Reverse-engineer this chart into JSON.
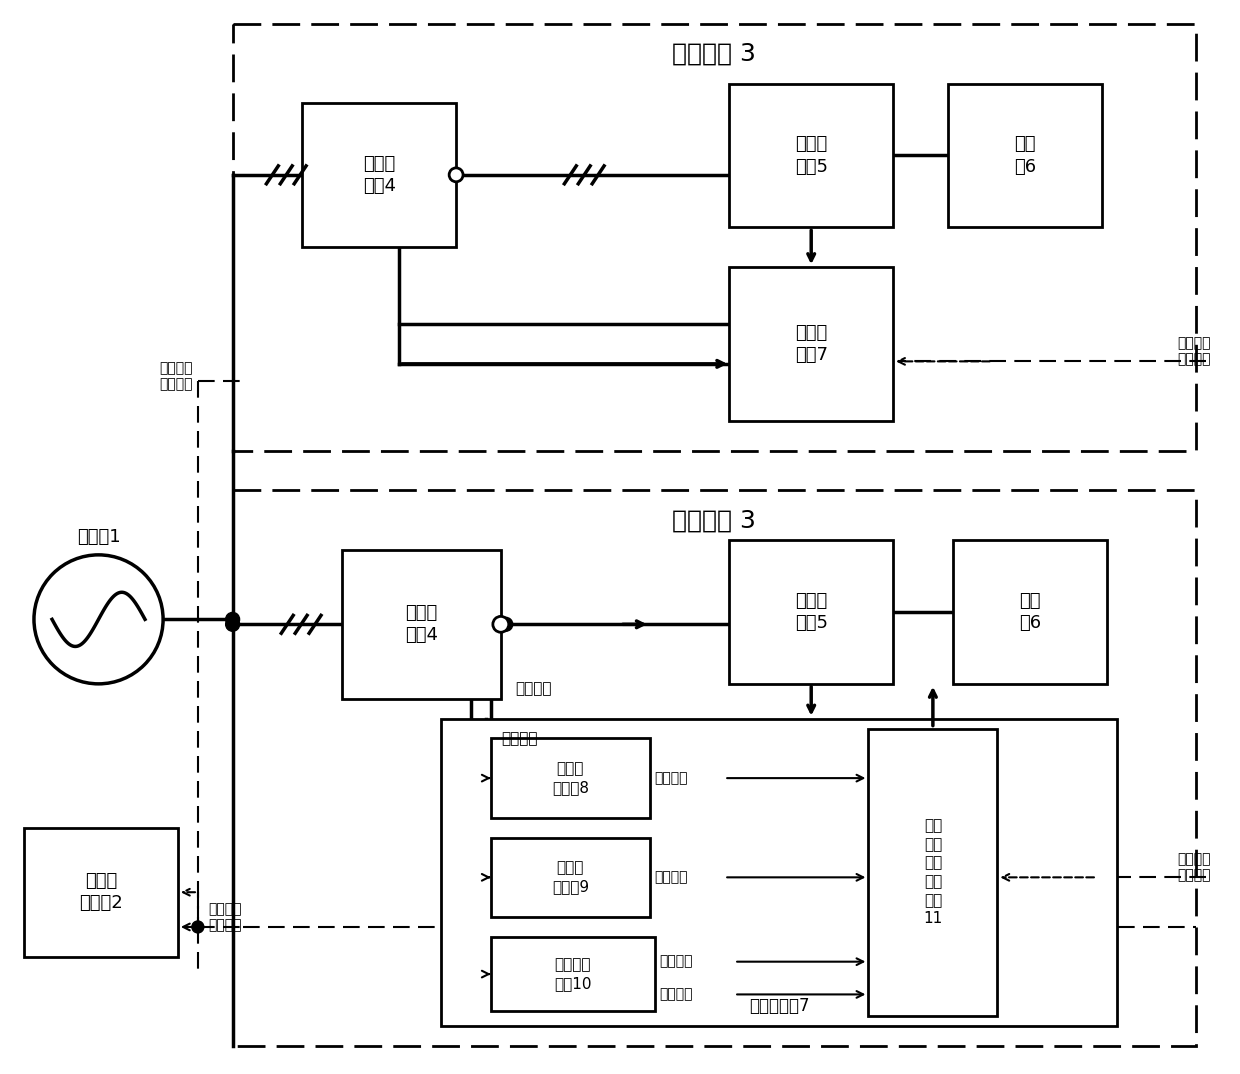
{
  "bg_color": "#ffffff",
  "title_top": "发电机组 3",
  "title_bot": "发电机组 3",
  "label_distribution": "配电网1",
  "label_energy": "能量管\n理平台2",
  "label_transformer_top": "并网变\n压器4",
  "label_inverter_top": "并网变\n流器5",
  "label_generator_top": "发电\n机6",
  "label_controller_top": "并网控\n制器7",
  "label_transformer_bot": "并网变\n压器4",
  "label_inverter_bot": "并网变\n流器5",
  "label_generator_bot": "发电\n机6",
  "label_voltage": "电压调\n整模块8",
  "label_freq": "频率调\n整模块9",
  "label_harmonic": "谐波调整\n模块10",
  "label_grid_ctrl": "并网\n控制\n信号\n调节\n模块\n11",
  "label_grid_ctrl7": "并网控制器7",
  "label_ethernet_top_right": "以太网或\n光纤通讯",
  "label_ethernet_top_left": "以太网或\n光纤通讯",
  "label_ethernet_bot_right": "以太网或\n光纤通讯",
  "label_parallel_current": "并网电流",
  "label_grid_voltage": "电网电压",
  "label_reactive": "无功调节",
  "label_active": "有功调节",
  "label_harmonic_ctrl": "谐波控制",
  "label_quality": "质量控制",
  "label_eth_energy": "以太网或\n光纤通讯"
}
